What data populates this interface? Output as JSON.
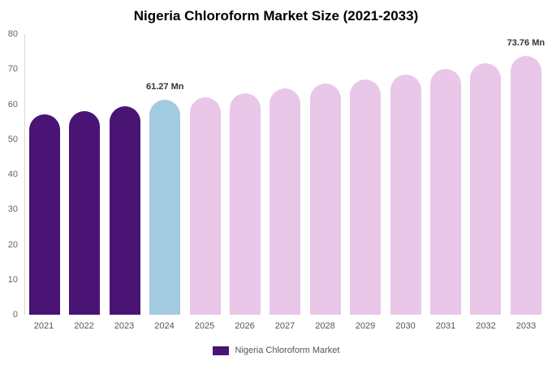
{
  "title": "Nigeria Chloroform Market Size (2021-2033)",
  "legend": {
    "label": "Nigeria Chloroform Market",
    "swatch_color": "#4A1475"
  },
  "chart_data": {
    "type": "bar",
    "title": "Nigeria Chloroform Market Size (2021-2033)",
    "categories": [
      "2021",
      "2022",
      "2023",
      "2024",
      "2025",
      "2026",
      "2027",
      "2028",
      "2029",
      "2030",
      "2031",
      "2032",
      "2033"
    ],
    "values": [
      57,
      58,
      59.5,
      61.27,
      62,
      63.2,
      64.5,
      65.8,
      67,
      68.5,
      70,
      71.7,
      73.76
    ],
    "unit": "Mn",
    "xlabel": "",
    "ylabel": "",
    "ylim": [
      0,
      80
    ],
    "yticks": [
      0,
      10,
      20,
      30,
      40,
      50,
      60,
      70,
      80
    ],
    "grid": false,
    "legend_position": "bottom",
    "bar_colors": [
      "#4A1475",
      "#4A1475",
      "#4A1475",
      "#A2CBE0",
      "#E9C7E9",
      "#E9C7E9",
      "#E9C7E9",
      "#E9C7E9",
      "#E9C7E9",
      "#E9C7E9",
      "#E9C7E9",
      "#E9C7E9",
      "#E9C7E9"
    ],
    "annotations": [
      {
        "category": "2024",
        "index": 3,
        "text": "61.27 Mn"
      },
      {
        "category": "2033",
        "index": 12,
        "text": "73.76 Mn"
      }
    ]
  }
}
